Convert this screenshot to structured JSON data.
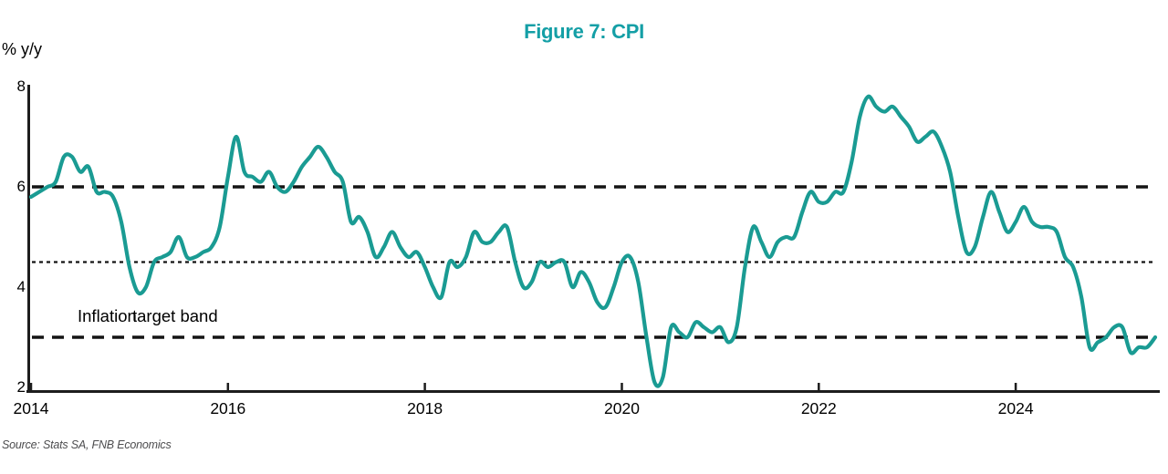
{
  "title": "Figure 7: CPI",
  "y_axis_unit_label": "% y/y",
  "annotation": {
    "part1": "Inflation",
    "part2": "target band"
  },
  "source": "Source: Stats SA, FNB Economics",
  "colors": {
    "line": "#1a9b93",
    "title": "#149fa6",
    "reference_lines": "#141414",
    "axis": "#1d1d1d",
    "source_text": "#4d4d4f"
  },
  "chart_data": {
    "type": "line",
    "title": "Figure 7: CPI",
    "ylabel": "% y/y",
    "xlabel": "",
    "ylim": [
      2,
      8
    ],
    "yticks": [
      8,
      6,
      4,
      2
    ],
    "xticks": [
      2014,
      2016,
      2018,
      2020,
      2022,
      2024
    ],
    "x_start": "2014-01",
    "x_end": "2025-06",
    "frequency": "monthly",
    "grid": false,
    "legend_position": "none",
    "reference_lines": [
      {
        "name": "inflation-target-upper",
        "value": 6.0,
        "style": "dashed"
      },
      {
        "name": "inflation-target-midpoint",
        "value": 4.5,
        "style": "dotted"
      },
      {
        "name": "inflation-target-lower",
        "value": 3.0,
        "style": "dashed"
      }
    ],
    "series": [
      {
        "name": "CPI % y/y",
        "values": [
          5.8,
          5.9,
          6.0,
          6.1,
          6.6,
          6.6,
          6.3,
          6.4,
          5.9,
          5.9,
          5.8,
          5.3,
          4.4,
          3.9,
          4.0,
          4.5,
          4.6,
          4.7,
          5.0,
          4.6,
          4.6,
          4.7,
          4.8,
          5.2,
          6.2,
          7.0,
          6.3,
          6.2,
          6.1,
          6.3,
          6.0,
          5.9,
          6.1,
          6.4,
          6.6,
          6.8,
          6.6,
          6.3,
          6.1,
          5.3,
          5.4,
          5.1,
          4.6,
          4.8,
          5.1,
          4.8,
          4.6,
          4.7,
          4.4,
          4.0,
          3.8,
          4.5,
          4.4,
          4.6,
          5.1,
          4.9,
          4.9,
          5.1,
          5.2,
          4.5,
          4.0,
          4.1,
          4.5,
          4.4,
          4.5,
          4.5,
          4.0,
          4.3,
          4.1,
          3.7,
          3.6,
          4.0,
          4.5,
          4.6,
          4.1,
          3.0,
          2.1,
          2.2,
          3.2,
          3.1,
          3.0,
          3.3,
          3.2,
          3.1,
          3.2,
          2.9,
          3.2,
          4.4,
          5.2,
          4.9,
          4.6,
          4.9,
          5.0,
          5.0,
          5.5,
          5.9,
          5.7,
          5.7,
          5.9,
          5.9,
          6.5,
          7.4,
          7.8,
          7.6,
          7.5,
          7.6,
          7.4,
          7.2,
          6.9,
          7.0,
          7.1,
          6.8,
          6.3,
          5.4,
          4.7,
          4.8,
          5.4,
          5.9,
          5.5,
          5.1,
          5.3,
          5.6,
          5.3,
          5.2,
          5.2,
          5.1,
          4.6,
          4.4,
          3.8,
          2.8,
          2.9,
          3.0,
          3.2,
          3.2,
          2.7,
          2.8,
          2.8,
          3.0
        ]
      }
    ]
  }
}
